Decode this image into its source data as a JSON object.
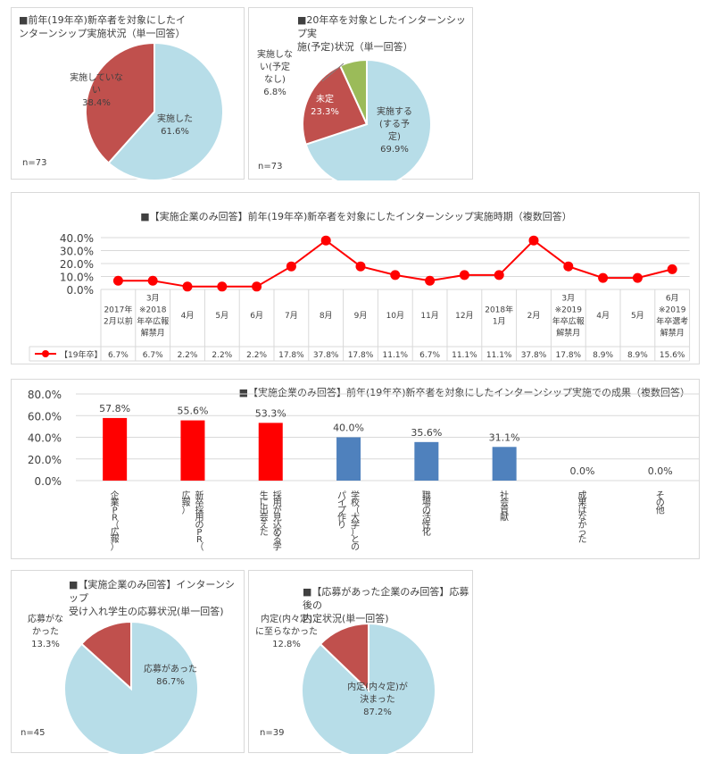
{
  "colors": {
    "blue": "#b7dde8",
    "red": "#c0504d",
    "green": "#9bbb59",
    "line": "#ff0000",
    "bar_red": "#ff0000",
    "bar_blue": "#4f81bd",
    "grid": "#d9d9d9"
  },
  "pie1": {
    "title": "■前年(19年卒)新卒者を対象にしたイ\nンターンシップ実施状況（単一回答）",
    "n": "n=73",
    "chart_data": {
      "type": "pie",
      "title": "■前年(19年卒)新卒者を対象にしたインターンシップ実施状況（単一回答）",
      "slices": [
        {
          "label": "実施した",
          "value": 61.6,
          "value_label": "61.6%",
          "color": "#b7dde8"
        },
        {
          "label": "実施していない",
          "value": 38.4,
          "value_label": "38.4%",
          "color": "#c0504d"
        }
      ]
    },
    "label_a": "実施した\n61.6%",
    "label_b": "実施していな\nい\n38.4%"
  },
  "pie2": {
    "title": "■20年卒を対象としたインターンシップ実\n施(予定)状況（単一回答）",
    "n": "n=73",
    "chart_data": {
      "type": "pie",
      "title": "■20年卒を対象としたインターンシップ実施(予定)状況（単一回答）",
      "slices": [
        {
          "label": "実施する(する予定)",
          "value": 69.9,
          "value_label": "69.9%",
          "color": "#b7dde8"
        },
        {
          "label": "未定",
          "value": 23.3,
          "value_label": "23.3%",
          "color": "#c0504d"
        },
        {
          "label": "実施しない(予定なし)",
          "value": 6.8,
          "value_label": "6.8%",
          "color": "#9bbb59"
        }
      ]
    },
    "label_a": "実施する\n(する予\n定)\n69.9%",
    "label_b": "未定\n23.3%",
    "label_c": "実施しな\nい(予定\nなし)\n6.8%"
  },
  "line": {
    "title": "■【実施企業のみ回答】前年(19年卒)新卒者を対象にしたインターンシップ実施時期（複数回答）",
    "chart_data": {
      "type": "line",
      "title": "■【実施企業のみ回答】前年(19年卒)新卒者を対象にしたインターンシップ実施時期（複数回答）",
      "categories": [
        "2017年\n2月以前",
        "3月\n※2018\n年卒広報\n解禁月",
        "4月",
        "5月",
        "6月",
        "7月",
        "8月",
        "9月",
        "10月",
        "11月",
        "12月",
        "2018年\n1月",
        "2月",
        "3月\n※2019\n年卒広報\n解禁月",
        "4月",
        "5月",
        "6月\n※2019\n年卒選考\n解禁月"
      ],
      "series": [
        {
          "name": "【19年卒】",
          "values": [
            6.7,
            6.7,
            2.2,
            2.2,
            2.2,
            17.8,
            37.8,
            17.8,
            11.1,
            6.7,
            11.1,
            11.1,
            37.8,
            17.8,
            8.9,
            8.9,
            15.6
          ],
          "labels": [
            "6.7%",
            "6.7%",
            "2.2%",
            "2.2%",
            "2.2%",
            "17.8%",
            "37.8%",
            "17.8%",
            "11.1%",
            "6.7%",
            "11.1%",
            "11.1%",
            "37.8%",
            "17.8%",
            "8.9%",
            "8.9%",
            "15.6%"
          ]
        }
      ],
      "yticks": [
        "40.0%",
        "30.0%",
        "20.0%",
        "10.0%",
        "0.0%"
      ],
      "ylim": [
        0,
        40
      ]
    }
  },
  "bar": {
    "title": "■【実施企業のみ回答】前年(19年卒)新卒者を対象にしたインターンシップ実施での成果（複数回答）",
    "chart_data": {
      "type": "bar",
      "title": "■【実施企業のみ回答】前年(19年卒)新卒者を対象にしたインターンシップ実施での成果（複数回答）",
      "categories": [
        "企業PR（広報）",
        "新卒採用のPR（広報）",
        "採用が見込める学生に出会えた",
        "学校（大学）とのパイプ作り",
        "職場の活性化",
        "社会貢献",
        "成果はなかった",
        "その他"
      ],
      "columns": [
        [
          "企",
          "業",
          "P",
          "R",
          "（",
          "広",
          "報",
          "）"
        ],
        [
          "新",
          "卒",
          "採",
          "用",
          "の",
          "P",
          "R",
          "（",
          "広",
          "報",
          "）"
        ],
        [
          "採",
          "用",
          "が",
          "見",
          "込",
          "め",
          "る",
          "学",
          "生",
          "に",
          "出",
          "会",
          "え",
          "た"
        ],
        [
          "学",
          "校",
          "（",
          "大",
          "学",
          "）",
          "と",
          "の",
          "パ",
          "イ",
          "プ",
          "作",
          "り"
        ],
        [
          "職",
          "場",
          "の",
          "活",
          "性",
          "化"
        ],
        [
          "社",
          "会",
          "貢",
          "献"
        ],
        [
          "成",
          "果",
          "は",
          "な",
          "か",
          "っ",
          "た"
        ],
        [
          "そ",
          "の",
          "他"
        ]
      ],
      "values": [
        57.8,
        55.6,
        53.3,
        40.0,
        35.6,
        31.1,
        0.0,
        0.0
      ],
      "value_labels": [
        "57.8%",
        "55.6%",
        "53.3%",
        "40.0%",
        "35.6%",
        "31.1%",
        "0.0%",
        "0.0%"
      ],
      "bar_colors": [
        "#ff0000",
        "#ff0000",
        "#ff0000",
        "#4f81bd",
        "#4f81bd",
        "#4f81bd",
        "#4f81bd",
        "#4f81bd"
      ],
      "yticks": [
        "80.0%",
        "60.0%",
        "40.0%",
        "20.0%",
        "0.0%"
      ],
      "ylim": [
        0,
        80
      ]
    }
  },
  "pie3": {
    "title": "■【実施企業のみ回答】インターンシップ\n受け入れ学生の応募状況(単一回答)",
    "n": "n=45",
    "chart_data": {
      "type": "pie",
      "title": "■【実施企業のみ回答】インターンシップ受け入れ学生の応募状況(単一回答)",
      "slices": [
        {
          "label": "応募があった",
          "value": 86.7,
          "value_label": "86.7%",
          "color": "#b7dde8"
        },
        {
          "label": "応募がなかった",
          "value": 13.3,
          "value_label": "13.3%",
          "color": "#c0504d"
        }
      ]
    },
    "label_a": "応募があった\n86.7%",
    "label_b": "応募がな\nかった\n13.3%"
  },
  "pie4": {
    "title": "■【応募があった企業のみ回答】応募後の\n内定状況(単一回答)",
    "n": "n=39",
    "chart_data": {
      "type": "pie",
      "title": "■【応募があった企業のみ回答】応募後の内定状況(単一回答)",
      "slices": [
        {
          "label": "内定(内々定)が決まった",
          "value": 87.2,
          "value_label": "87.2%",
          "color": "#b7dde8"
        },
        {
          "label": "内定(内々定)に至らなかった",
          "value": 12.8,
          "value_label": "12.8%",
          "color": "#c0504d"
        }
      ]
    },
    "label_a": "内定(内々定)が\n決まった\n87.2%",
    "label_b": "内定(内々定)\nに至らなかった\n12.8%"
  }
}
